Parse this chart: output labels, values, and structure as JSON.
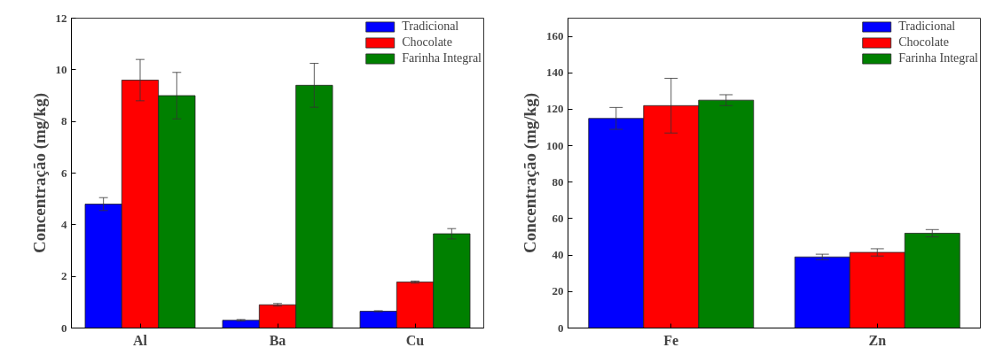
{
  "chart_data": [
    {
      "type": "bar",
      "categories": [
        "Al",
        "Ba",
        "Cu"
      ],
      "ylabel": "Concentração (mg/kg)",
      "ylim": [
        0,
        12
      ],
      "yticks": [
        0,
        2,
        4,
        6,
        8,
        10,
        12
      ],
      "legend": "top right",
      "grid": false,
      "series": [
        {
          "name": "Tradicional",
          "color": "#0000ff",
          "values": [
            4.8,
            0.3,
            0.65
          ],
          "errors": [
            0.25,
            0.03,
            0.02
          ]
        },
        {
          "name": "Chocolate",
          "color": "#ff0000",
          "values": [
            9.6,
            0.9,
            1.78
          ],
          "errors": [
            0.8,
            0.05,
            0.04
          ]
        },
        {
          "name": "Farinha Integral",
          "color": "#008000",
          "values": [
            9.0,
            9.4,
            3.65
          ],
          "errors": [
            0.9,
            0.85,
            0.2
          ]
        }
      ]
    },
    {
      "type": "bar",
      "categories": [
        "Fe",
        "Zn"
      ],
      "ylabel": "Concentração (mg/kg)",
      "ylim": [
        0,
        170
      ],
      "yticks": [
        0,
        20,
        40,
        60,
        80,
        100,
        120,
        140,
        160
      ],
      "legend": "top right",
      "grid": false,
      "series": [
        {
          "name": "Tradicional",
          "color": "#0000ff",
          "values": [
            115,
            39
          ],
          "errors": [
            6,
            1.5
          ]
        },
        {
          "name": "Chocolate",
          "color": "#ff0000",
          "values": [
            122,
            41.5
          ],
          "errors": [
            15,
            2
          ]
        },
        {
          "name": "Farinha Integral",
          "color": "#008000",
          "values": [
            125,
            52
          ],
          "errors": [
            3,
            2
          ]
        }
      ]
    }
  ]
}
